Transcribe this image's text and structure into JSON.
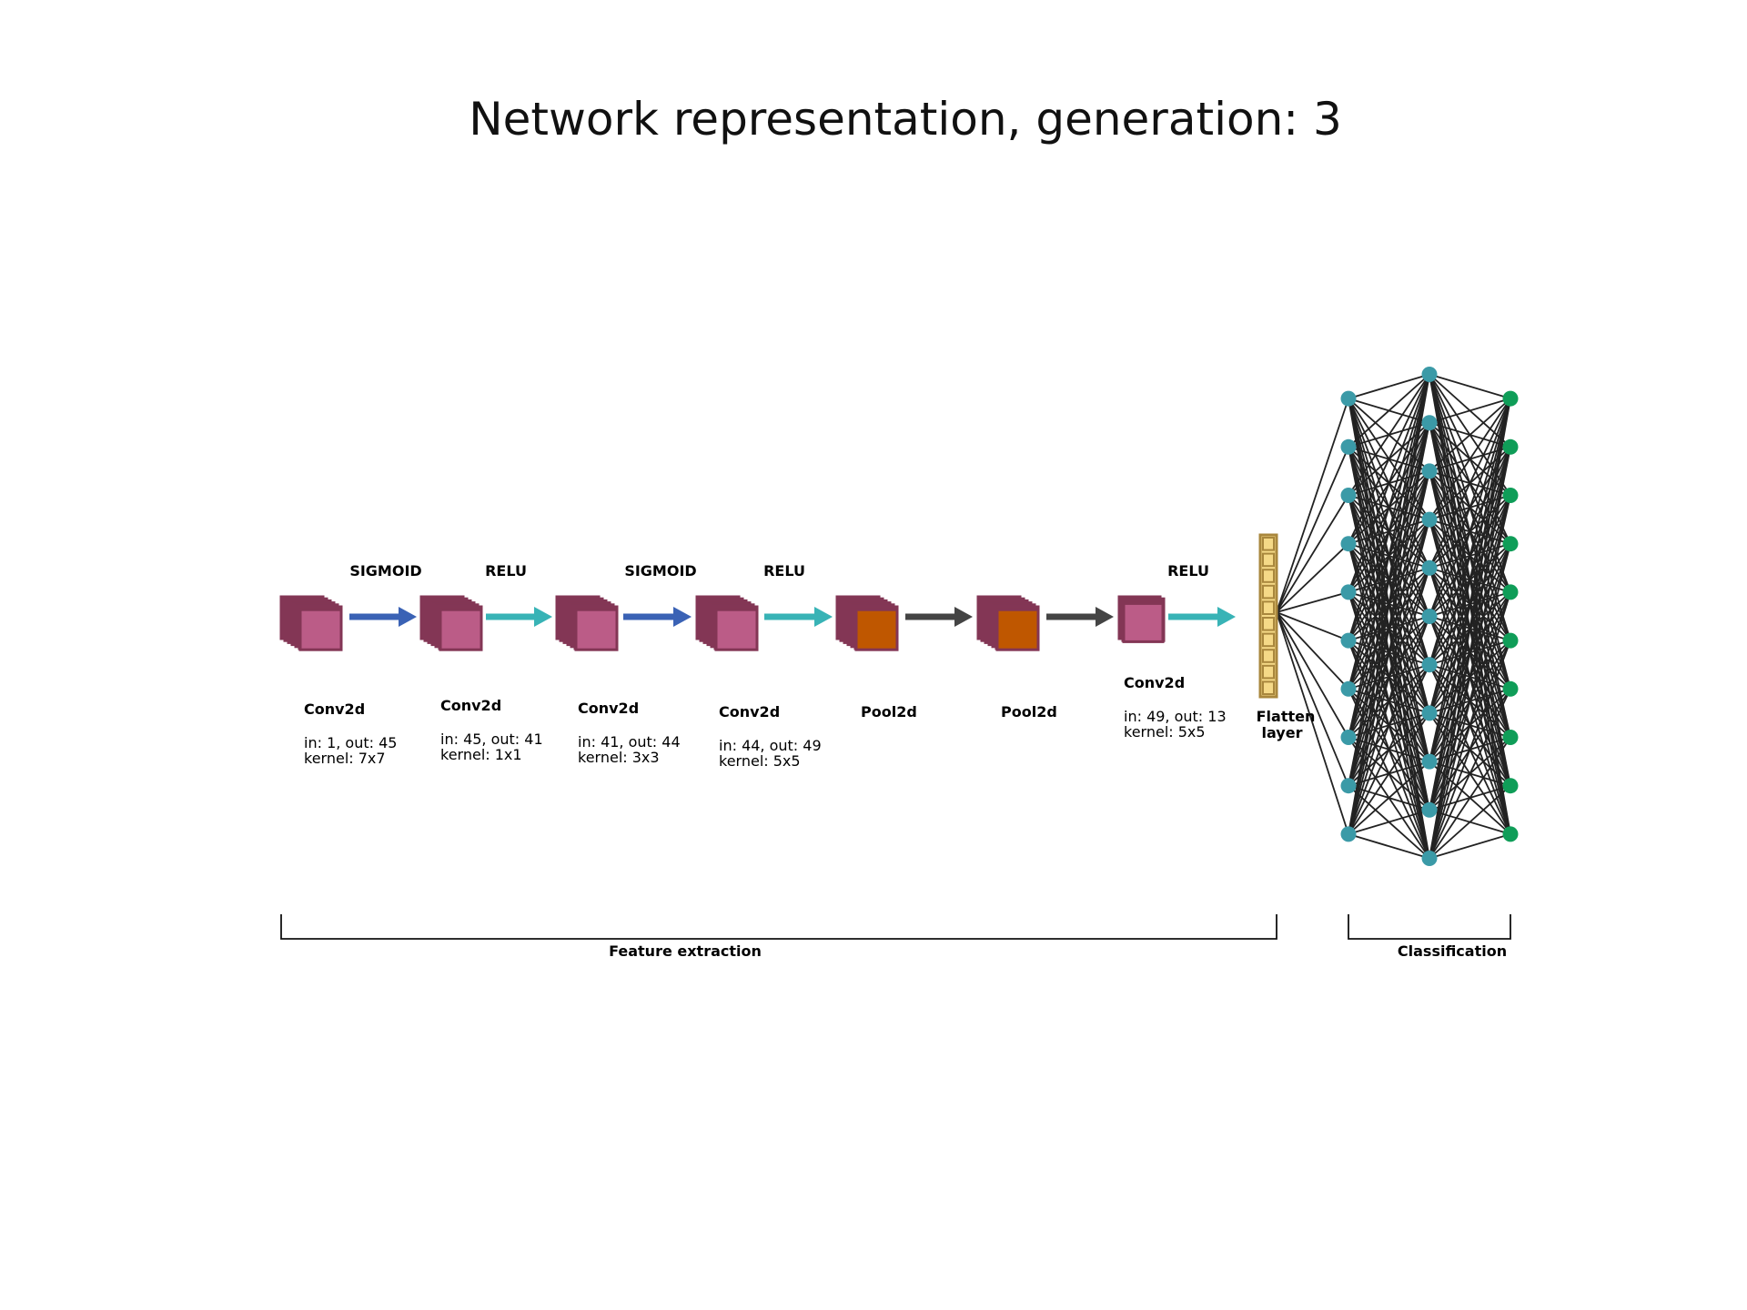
{
  "title": "Network representation, generation: 3",
  "colors": {
    "block_back": "#833655",
    "block_front": "#bb5c87",
    "pool_front": "#bf5700",
    "arrow_sigmoid": "#3a62b5",
    "arrow_relu": "#38b3b6",
    "arrow_none": "#444444",
    "flatten_fill": "#f5d987",
    "flatten_edge": "#a9873d",
    "hidden_node": "#3b9aa7",
    "output_node": "#0f9d58",
    "edge": "#222222"
  },
  "layers": [
    {
      "type": "Conv2d",
      "name": "Conv2d",
      "in_out": "in: 1, out: 45",
      "kernel": "kernel: 7x7",
      "kind": "conv"
    },
    {
      "type": "Conv2d",
      "name": "Conv2d",
      "in_out": "in: 45, out: 41",
      "kernel": "kernel: 1x1",
      "kind": "conv"
    },
    {
      "type": "Conv2d",
      "name": "Conv2d",
      "in_out": "in: 41, out: 44",
      "kernel": "kernel: 3x3",
      "kind": "conv"
    },
    {
      "type": "Conv2d",
      "name": "Conv2d",
      "in_out": "in: 44, out: 49",
      "kernel": "kernel: 5x5",
      "kind": "conv"
    },
    {
      "type": "Pool2d",
      "name": "Pool2d",
      "in_out": "",
      "kernel": "",
      "kind": "pool"
    },
    {
      "type": "Pool2d",
      "name": "Pool2d",
      "in_out": "",
      "kernel": "",
      "kind": "pool"
    },
    {
      "type": "Conv2d",
      "name": "Conv2d",
      "in_out": "in: 49, out: 13",
      "kernel": "kernel: 5x5",
      "kind": "conv-small"
    }
  ],
  "activations": [
    {
      "label": "SIGMOID",
      "color_key": "arrow_sigmoid"
    },
    {
      "label": "RELU",
      "color_key": "arrow_relu"
    },
    {
      "label": "SIGMOID",
      "color_key": "arrow_sigmoid"
    },
    {
      "label": "RELU",
      "color_key": "arrow_relu"
    },
    {
      "label": "",
      "color_key": "arrow_none"
    },
    {
      "label": "",
      "color_key": "arrow_none"
    },
    {
      "label": "RELU",
      "color_key": "arrow_relu"
    }
  ],
  "flatten": {
    "label_line1": "Flatten",
    "label_line2": "layer",
    "cells": 10
  },
  "classifier": {
    "layer_sizes": [
      10,
      11,
      10
    ]
  },
  "sections": {
    "feature_extraction": "Feature extraction",
    "classification": "Classification"
  }
}
